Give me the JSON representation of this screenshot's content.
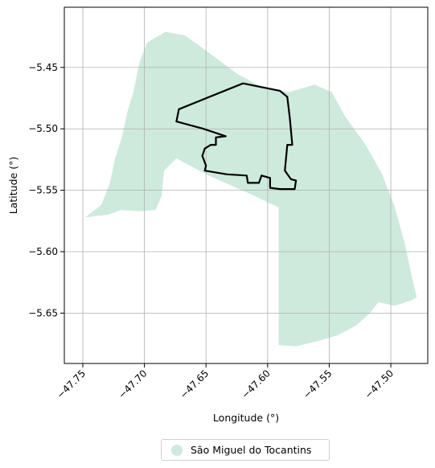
{
  "chart_data": {
    "type": "map",
    "xlabel": "Longitude (°)",
    "ylabel": "Latitude (°)",
    "xlim": [
      -47.765,
      -47.47
    ],
    "ylim": [
      -5.691,
      -5.401
    ],
    "xticks": [
      -47.75,
      -47.7,
      -47.65,
      -47.6,
      -47.55,
      -47.5
    ],
    "xtick_labels": [
      "−47.75",
      "−47.70",
      "−47.65",
      "−47.60",
      "−47.55",
      "−47.50"
    ],
    "yticks": [
      -5.45,
      -5.5,
      -5.55,
      -5.6,
      -5.65
    ],
    "ytick_labels": [
      "−5.45",
      "−5.50",
      "−5.55",
      "−5.60",
      "−5.65"
    ],
    "grid": true,
    "legend_position": "bottom-center",
    "region_color": "#cdeadd",
    "outline_color": "#000000",
    "legend": [
      {
        "label": "São Miguel do Tocantins",
        "color": "#cdeadd",
        "marker": "circle"
      }
    ],
    "region_polygon": [
      [
        -47.748,
        -5.572
      ],
      [
        -47.735,
        -5.562
      ],
      [
        -47.728,
        -5.544
      ],
      [
        -47.724,
        -5.525
      ],
      [
        -47.718,
        -5.506
      ],
      [
        -47.714,
        -5.487
      ],
      [
        -47.709,
        -5.47
      ],
      [
        -47.704,
        -5.446
      ],
      [
        -47.698,
        -5.43
      ],
      [
        -47.683,
        -5.421
      ],
      [
        -47.667,
        -5.424
      ],
      [
        -47.649,
        -5.437
      ],
      [
        -47.625,
        -5.455
      ],
      [
        -47.601,
        -5.468
      ],
      [
        -47.582,
        -5.47
      ],
      [
        -47.562,
        -5.464
      ],
      [
        -47.548,
        -5.47
      ],
      [
        -47.537,
        -5.49
      ],
      [
        -47.521,
        -5.512
      ],
      [
        -47.507,
        -5.537
      ],
      [
        -47.497,
        -5.563
      ],
      [
        -47.489,
        -5.592
      ],
      [
        -47.483,
        -5.62
      ],
      [
        -47.479,
        -5.637
      ],
      [
        -47.484,
        -5.64
      ],
      [
        -47.497,
        -5.644
      ],
      [
        -47.51,
        -5.641
      ],
      [
        -47.517,
        -5.65
      ],
      [
        -47.528,
        -5.66
      ],
      [
        -47.543,
        -5.668
      ],
      [
        -47.56,
        -5.673
      ],
      [
        -47.577,
        -5.677
      ],
      [
        -47.591,
        -5.676
      ],
      [
        -47.591,
        -5.564
      ],
      [
        -47.614,
        -5.553
      ],
      [
        -47.65,
        -5.537
      ],
      [
        -47.674,
        -5.524
      ],
      [
        -47.684,
        -5.534
      ],
      [
        -47.686,
        -5.555
      ],
      [
        -47.691,
        -5.566
      ],
      [
        -47.704,
        -5.567
      ],
      [
        -47.719,
        -5.566
      ],
      [
        -47.73,
        -5.57
      ],
      [
        -47.748,
        -5.572
      ]
    ],
    "outline_polygon": [
      [
        -47.62,
        -5.463
      ],
      [
        -47.59,
        -5.469
      ],
      [
        -47.584,
        -5.474
      ],
      [
        -47.582,
        -5.491
      ],
      [
        -47.58,
        -5.513
      ],
      [
        -47.584,
        -5.513
      ],
      [
        -47.586,
        -5.534
      ],
      [
        -47.581,
        -5.541
      ],
      [
        -47.577,
        -5.542
      ],
      [
        -47.578,
        -5.549
      ],
      [
        -47.585,
        -5.549
      ],
      [
        -47.59,
        -5.549
      ],
      [
        -47.598,
        -5.548
      ],
      [
        -47.598,
        -5.54
      ],
      [
        -47.605,
        -5.538
      ],
      [
        -47.607,
        -5.544
      ],
      [
        -47.616,
        -5.544
      ],
      [
        -47.617,
        -5.538
      ],
      [
        -47.633,
        -5.537
      ],
      [
        -47.651,
        -5.534
      ],
      [
        -47.65,
        -5.53
      ],
      [
        -47.653,
        -5.522
      ],
      [
        -47.651,
        -5.516
      ],
      [
        -47.646,
        -5.513
      ],
      [
        -47.642,
        -5.513
      ],
      [
        -47.642,
        -5.507
      ],
      [
        -47.634,
        -5.506
      ],
      [
        -47.652,
        -5.5
      ],
      [
        -47.674,
        -5.494
      ],
      [
        -47.672,
        -5.484
      ],
      [
        -47.62,
        -5.463
      ]
    ]
  }
}
